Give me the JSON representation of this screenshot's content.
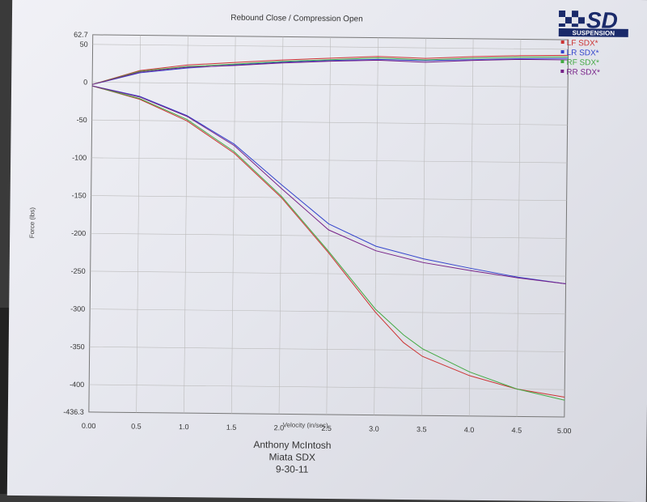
{
  "chart_data": {
    "type": "line",
    "title": "Rebound Close / Compression Open",
    "xlabel": "Velocity (in/sec)",
    "ylabel": "Force (lbs)",
    "xlim": [
      0,
      5.0
    ],
    "ylim": [
      -436.3,
      62.7
    ],
    "grid": true,
    "legend_placement": "top-right",
    "x_ticks": [
      "0.00",
      "0.5",
      "1.0",
      "1.5",
      "2.0",
      "2.5",
      "3.0",
      "3.5",
      "4.0",
      "4.5",
      "5.00"
    ],
    "y_ticks": [
      62.7,
      50,
      0,
      -50,
      -100,
      -150,
      -200,
      -250,
      -300,
      -350,
      -400,
      -436.3
    ],
    "series": [
      {
        "name": "LF SDX*",
        "color": "#cc3333",
        "compression": [
          [
            0,
            -3
          ],
          [
            0.5,
            16
          ],
          [
            1,
            24
          ],
          [
            1.5,
            28
          ],
          [
            2,
            32
          ],
          [
            2.5,
            35
          ],
          [
            3,
            38
          ],
          [
            3.5,
            36
          ],
          [
            4,
            39
          ],
          [
            4.5,
            41
          ],
          [
            5,
            42
          ]
        ],
        "rebound": [
          [
            0,
            -5
          ],
          [
            0.5,
            -22
          ],
          [
            1,
            -50
          ],
          [
            1.5,
            -92
          ],
          [
            2,
            -150
          ],
          [
            2.5,
            -222
          ],
          [
            3,
            -300
          ],
          [
            3.3,
            -340
          ],
          [
            3.5,
            -358
          ],
          [
            4,
            -383
          ],
          [
            4.5,
            -400
          ],
          [
            5,
            -410
          ]
        ]
      },
      {
        "name": "LR SDX*",
        "color": "#3344cc",
        "compression": [
          [
            0,
            -3
          ],
          [
            0.5,
            13
          ],
          [
            1,
            20
          ],
          [
            1.5,
            25
          ],
          [
            2,
            29
          ],
          [
            2.5,
            32
          ],
          [
            3,
            34
          ],
          [
            3.5,
            33
          ],
          [
            4,
            35
          ],
          [
            4.5,
            37
          ],
          [
            5,
            38
          ]
        ],
        "rebound": [
          [
            0,
            -5
          ],
          [
            0.5,
            -18
          ],
          [
            1,
            -43
          ],
          [
            1.5,
            -80
          ],
          [
            2,
            -133
          ],
          [
            2.5,
            -184
          ],
          [
            3,
            -213
          ],
          [
            3.5,
            -229
          ],
          [
            4,
            -241
          ],
          [
            4.5,
            -252
          ],
          [
            5,
            -260
          ]
        ]
      },
      {
        "name": "RF SDX*",
        "color": "#44aa44",
        "compression": [
          [
            0,
            -3
          ],
          [
            0.5,
            15
          ],
          [
            1,
            22
          ],
          [
            1.5,
            26
          ],
          [
            2,
            30
          ],
          [
            2.5,
            33
          ],
          [
            3,
            36
          ],
          [
            3.5,
            34
          ],
          [
            4,
            37
          ],
          [
            4.5,
            39
          ],
          [
            5,
            40
          ]
        ],
        "rebound": [
          [
            0,
            -5
          ],
          [
            0.5,
            -21
          ],
          [
            1,
            -48
          ],
          [
            1.5,
            -90
          ],
          [
            2,
            -148
          ],
          [
            2.5,
            -220
          ],
          [
            3,
            -296
          ],
          [
            3.3,
            -330
          ],
          [
            3.5,
            -348
          ],
          [
            4,
            -378
          ],
          [
            4.5,
            -400
          ],
          [
            5,
            -414
          ]
        ]
      },
      {
        "name": "RR SDX*",
        "color": "#772288",
        "compression": [
          [
            0,
            -3
          ],
          [
            0.5,
            14
          ],
          [
            1,
            21
          ],
          [
            1.5,
            24
          ],
          [
            2,
            28
          ],
          [
            2.5,
            31
          ],
          [
            3,
            33
          ],
          [
            3.5,
            31
          ],
          [
            4,
            34
          ],
          [
            4.5,
            36
          ],
          [
            5,
            36
          ]
        ],
        "rebound": [
          [
            0,
            -5
          ],
          [
            0.5,
            -19
          ],
          [
            1,
            -44
          ],
          [
            1.5,
            -82
          ],
          [
            2,
            -138
          ],
          [
            2.5,
            -192
          ],
          [
            3,
            -219
          ],
          [
            3.5,
            -234
          ],
          [
            4,
            -244
          ],
          [
            4.5,
            -253
          ],
          [
            5,
            -260
          ]
        ]
      }
    ]
  },
  "logo": {
    "brand": "SD",
    "subtext": "SUSPENSION"
  },
  "footer": {
    "name": "Anthony McIntosh",
    "model": "Miata SDX",
    "date": "9-30-11"
  }
}
